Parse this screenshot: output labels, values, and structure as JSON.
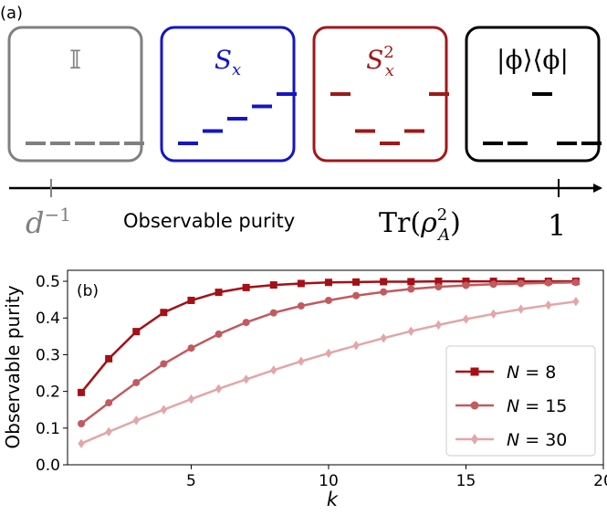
{
  "panel_a": {
    "label": "(a)",
    "boxes": [
      {
        "symbol": "𝕀",
        "color": "#808080",
        "levels": [
          0,
          0,
          0,
          0,
          0
        ]
      },
      {
        "symbol": "S",
        "sub": "x",
        "color": "#1414c8",
        "levels": [
          0,
          1,
          2,
          3,
          4
        ]
      },
      {
        "symbol": "S",
        "sub": "x",
        "sup": "2",
        "color": "#a01818",
        "levels": [
          4,
          1,
          0,
          1,
          4
        ]
      },
      {
        "symbol": "|ϕ⟩⟨ϕ|",
        "color": "#000000",
        "levels": [
          0,
          0,
          4,
          0,
          0
        ]
      }
    ],
    "axis_left_base": "d",
    "axis_left_exp": "−1",
    "axis_title": "Observable purity",
    "axis_formula_prefix": "Tr(",
    "axis_formula_rho": "ρ",
    "axis_formula_sup": "2",
    "axis_formula_sub": "A",
    "axis_formula_suffix": ")",
    "axis_right_value": "1",
    "colors": {
      "gray": "#808080",
      "black": "#000000"
    }
  },
  "chart_data": {
    "type": "line",
    "panel_label": "(b)",
    "xlabel": "k",
    "ylabel": "Observable purity",
    "xlim": [
      0.5,
      20
    ],
    "ylim": [
      0,
      0.53
    ],
    "xticks": [
      5,
      10,
      15,
      20
    ],
    "yticks": [
      0.0,
      0.1,
      0.2,
      0.3,
      0.4,
      0.5
    ],
    "x": [
      1,
      2,
      3,
      4,
      5,
      6,
      7,
      8,
      9,
      10,
      11,
      12,
      13,
      14,
      15,
      16,
      17,
      18,
      19
    ],
    "legend_position": "lower-right",
    "series": [
      {
        "name": "N = 8",
        "legend_prefix": "N",
        "legend_value": "8",
        "marker": "square",
        "color": "#a50f15",
        "values": [
          0.197,
          0.289,
          0.363,
          0.415,
          0.448,
          0.47,
          0.483,
          0.49,
          0.494,
          0.497,
          0.498,
          0.499,
          0.499,
          0.5,
          0.5,
          0.5,
          0.5,
          0.5,
          0.5
        ]
      },
      {
        "name": "N = 15",
        "legend_prefix": "N",
        "legend_value": "15",
        "marker": "circle",
        "color": "#c25a5e",
        "values": [
          0.112,
          0.169,
          0.224,
          0.275,
          0.318,
          0.356,
          0.388,
          0.414,
          0.433,
          0.448,
          0.461,
          0.471,
          0.479,
          0.485,
          0.489,
          0.492,
          0.494,
          0.496,
          0.497
        ]
      },
      {
        "name": "N = 30",
        "legend_prefix": "N",
        "legend_value": "30",
        "marker": "diamond",
        "color": "#e3a6a8",
        "values": [
          0.058,
          0.09,
          0.121,
          0.15,
          0.179,
          0.207,
          0.233,
          0.258,
          0.282,
          0.304,
          0.325,
          0.345,
          0.364,
          0.381,
          0.397,
          0.411,
          0.424,
          0.435,
          0.445
        ]
      }
    ]
  }
}
